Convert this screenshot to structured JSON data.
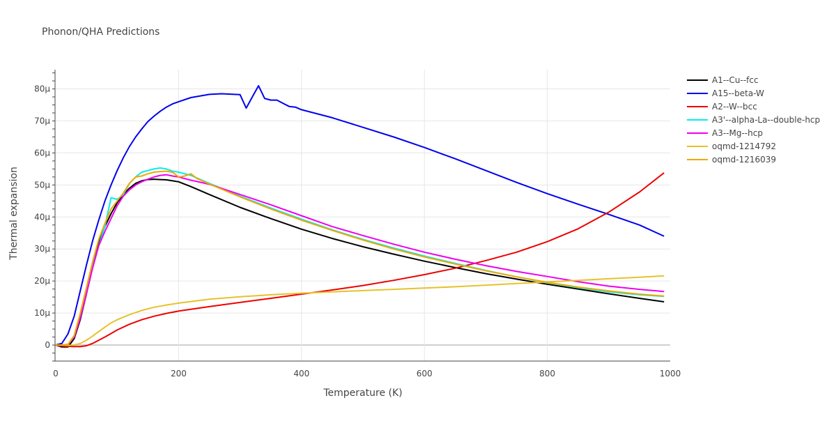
{
  "chart_data": {
    "type": "line",
    "title": "Phonon/QHA Predictions",
    "xlabel": "Temperature (K)",
    "ylabel": "Thermal expansion",
    "xlim": [
      0,
      1000
    ],
    "ylim": [
      -5e-06,
      8.6e-05
    ],
    "xticks": [
      0,
      200,
      400,
      600,
      800,
      1000
    ],
    "xtick_labels": [
      "0",
      "200",
      "400",
      "600",
      "800",
      "1000"
    ],
    "yticks": [
      0,
      1e-05,
      2e-05,
      3e-05,
      4e-05,
      5e-05,
      6e-05,
      7e-05,
      8e-05
    ],
    "ytick_labels": [
      "0",
      "10μ",
      "20μ",
      "30μ",
      "40μ",
      "50μ",
      "60μ",
      "70μ",
      "80μ"
    ],
    "grid": true,
    "legend_position": "right",
    "series": [
      {
        "name": "A1--Cu--fcc",
        "color": "#000000",
        "x": [
          0,
          10,
          20,
          30,
          40,
          50,
          60,
          70,
          80,
          90,
          100,
          110,
          120,
          130,
          140,
          150,
          160,
          170,
          180,
          190,
          200,
          220,
          250,
          300,
          350,
          400,
          450,
          500,
          550,
          600,
          650,
          700,
          750,
          800,
          850,
          900,
          950,
          990
        ],
        "y": [
          0,
          -6e-07,
          -6e-07,
          2e-06,
          8e-06,
          1.6e-05,
          2.5e-05,
          3.2e-05,
          3.7e-05,
          4.1e-05,
          4.45e-05,
          4.7e-05,
          4.9e-05,
          5.05e-05,
          5.13e-05,
          5.17e-05,
          5.18e-05,
          5.17e-05,
          5.16e-05,
          5.13e-05,
          5.1e-05,
          4.95e-05,
          4.7e-05,
          4.3e-05,
          3.95e-05,
          3.62e-05,
          3.33e-05,
          3.07e-05,
          2.84e-05,
          2.62e-05,
          2.42e-05,
          2.23e-05,
          2.06e-05,
          1.9e-05,
          1.75e-05,
          1.6e-05,
          1.46e-05,
          1.35e-05
        ]
      },
      {
        "name": "A15--beta-W",
        "color": "#0000ee",
        "x": [
          0,
          10,
          20,
          30,
          40,
          50,
          60,
          70,
          80,
          90,
          100,
          110,
          120,
          130,
          140,
          150,
          160,
          170,
          180,
          190,
          200,
          220,
          250,
          270,
          300,
          310,
          320,
          330,
          340,
          350,
          360,
          370,
          380,
          390,
          400,
          450,
          500,
          550,
          600,
          650,
          700,
          750,
          800,
          850,
          900,
          950,
          990
        ],
        "y": [
          0,
          5e-07,
          3.5e-06,
          9e-06,
          1.7e-05,
          2.5e-05,
          3.25e-05,
          3.9e-05,
          4.5e-05,
          5e-05,
          5.45e-05,
          5.85e-05,
          6.2e-05,
          6.5e-05,
          6.75e-05,
          6.98e-05,
          7.15e-05,
          7.3e-05,
          7.43e-05,
          7.53e-05,
          7.6e-05,
          7.73e-05,
          7.83e-05,
          7.85e-05,
          7.82e-05,
          7.4e-05,
          7.75e-05,
          8.1e-05,
          7.7e-05,
          7.65e-05,
          7.65e-05,
          7.55e-05,
          7.45e-05,
          7.43e-05,
          7.35e-05,
          7.1e-05,
          6.8e-05,
          6.5e-05,
          6.17e-05,
          5.82e-05,
          5.45e-05,
          5.08e-05,
          4.73e-05,
          4.4e-05,
          4.08e-05,
          3.75e-05,
          3.4e-05
        ]
      },
      {
        "name": "A2--W--bcc",
        "color": "#ee0000",
        "x": [
          0,
          10,
          20,
          30,
          40,
          50,
          60,
          70,
          80,
          90,
          100,
          120,
          140,
          160,
          180,
          200,
          250,
          300,
          350,
          400,
          450,
          500,
          550,
          600,
          650,
          700,
          750,
          800,
          850,
          900,
          950,
          990
        ],
        "y": [
          0,
          -3e-07,
          -4e-07,
          -5e-07,
          -5e-07,
          -2e-07,
          5e-07,
          1.5e-06,
          2.5e-06,
          3.6e-06,
          4.7e-06,
          6.5e-06,
          7.9e-06,
          9e-06,
          9.9e-06,
          1.06e-05,
          1.2e-05,
          1.33e-05,
          1.46e-05,
          1.59e-05,
          1.72e-05,
          1.86e-05,
          2.02e-05,
          2.2e-05,
          2.4e-05,
          2.64e-05,
          2.9e-05,
          3.23e-05,
          3.63e-05,
          4.15e-05,
          4.78e-05,
          5.38e-05
        ]
      },
      {
        "name": "A3'--alpha-La--double-hcp",
        "color": "#00eeee",
        "x": [
          0,
          10,
          20,
          30,
          40,
          50,
          60,
          70,
          80,
          90,
          100,
          110,
          120,
          130,
          140,
          150,
          160,
          170,
          180,
          190,
          200,
          220,
          250,
          300,
          350,
          400,
          450,
          500,
          550,
          600,
          650,
          700,
          750,
          800,
          850,
          900,
          950,
          990
        ],
        "y": [
          0,
          0,
          2e-07,
          2.5e-06,
          9e-06,
          1.7e-05,
          2.45e-05,
          3.1e-05,
          3.7e-05,
          4.6e-05,
          4.55e-05,
          4.7e-05,
          5.05e-05,
          5.25e-05,
          5.4e-05,
          5.45e-05,
          5.5e-05,
          5.53e-05,
          5.5e-05,
          5.43e-05,
          5.4e-05,
          5.3e-05,
          5.05e-05,
          4.65e-05,
          4.28e-05,
          3.93e-05,
          3.6e-05,
          3.3e-05,
          3.03e-05,
          2.78e-05,
          2.55e-05,
          2.33e-05,
          2.13e-05,
          1.95e-05,
          1.79e-05,
          1.66e-05,
          1.57e-05,
          1.52e-05
        ]
      },
      {
        "name": "A3--Mg--hcp",
        "color": "#ee00ee",
        "x": [
          0,
          10,
          20,
          30,
          40,
          50,
          60,
          70,
          80,
          90,
          100,
          110,
          120,
          130,
          140,
          150,
          160,
          170,
          180,
          190,
          200,
          220,
          250,
          300,
          350,
          400,
          450,
          500,
          550,
          600,
          650,
          700,
          750,
          800,
          850,
          900,
          950,
          990
        ],
        "y": [
          0,
          0,
          2e-07,
          2.5e-06,
          8.5e-06,
          1.6e-05,
          2.4e-05,
          3.1e-05,
          3.55e-05,
          3.95e-05,
          4.35e-05,
          4.65e-05,
          4.85e-05,
          5e-05,
          5.1e-05,
          5.18e-05,
          5.25e-05,
          5.3e-05,
          5.32e-05,
          5.28e-05,
          5.25e-05,
          5.15e-05,
          5.02e-05,
          4.7e-05,
          4.38e-05,
          4.04e-05,
          3.7e-05,
          3.42e-05,
          3.15e-05,
          2.9e-05,
          2.68e-05,
          2.48e-05,
          2.3e-05,
          2.14e-05,
          1.98e-05,
          1.84e-05,
          1.74e-05,
          1.67e-05
        ]
      },
      {
        "name": "oqmd-1214792",
        "color": "#e6c22a",
        "x": [
          0,
          20,
          30,
          40,
          50,
          60,
          70,
          80,
          90,
          100,
          120,
          140,
          160,
          180,
          200,
          250,
          300,
          350,
          400,
          450,
          500,
          550,
          600,
          650,
          700,
          750,
          800,
          850,
          900,
          950,
          990
        ],
        "y": [
          0,
          -1e-07,
          0,
          5e-07,
          1.5e-06,
          2.8e-06,
          4.2e-06,
          5.6e-06,
          6.9e-06,
          7.9e-06,
          9.5e-06,
          1.08e-05,
          1.18e-05,
          1.25e-05,
          1.31e-05,
          1.43e-05,
          1.51e-05,
          1.57e-05,
          1.62e-05,
          1.66e-05,
          1.7e-05,
          1.74e-05,
          1.78e-05,
          1.82e-05,
          1.87e-05,
          1.92e-05,
          1.97e-05,
          2.02e-05,
          2.07e-05,
          2.12e-05,
          2.16e-05
        ]
      },
      {
        "name": "oqmd-1216039",
        "color": "#f0a800",
        "x": [
          0,
          10,
          20,
          30,
          40,
          50,
          60,
          70,
          80,
          90,
          100,
          110,
          120,
          130,
          140,
          150,
          160,
          170,
          180,
          190,
          200,
          210,
          220,
          230,
          250,
          300,
          350,
          400,
          450,
          500,
          550,
          600,
          650,
          700,
          750,
          800,
          850,
          900,
          950,
          990
        ],
        "y": [
          0,
          0,
          2e-07,
          3e-06,
          1e-05,
          1.8e-05,
          2.6e-05,
          3.3e-05,
          3.8e-05,
          4.25e-05,
          4.5e-05,
          4.75e-05,
          5.05e-05,
          5.25e-05,
          5.28e-05,
          5.35e-05,
          5.4e-05,
          5.42e-05,
          5.43e-05,
          5.4e-05,
          5.25e-05,
          5.28e-05,
          5.35e-05,
          5.2e-05,
          5.03e-05,
          4.63e-05,
          4.25e-05,
          3.9e-05,
          3.58e-05,
          3.28e-05,
          3e-05,
          2.75e-05,
          2.53e-05,
          2.32e-05,
          2.13e-05,
          1.96e-05,
          1.81e-05,
          1.69e-05,
          1.59e-05,
          1.53e-05
        ]
      }
    ]
  }
}
